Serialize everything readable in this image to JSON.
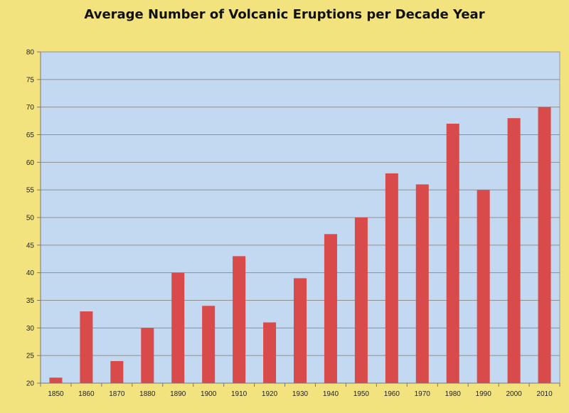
{
  "colors": {
    "background": "#f3e37f",
    "plot_area": "#c3d9f1",
    "bar": "#d94b4b",
    "gridline": "#8f8f8f"
  },
  "chart_data": {
    "type": "bar",
    "title": "Average Number of Volcanic Eruptions per Decade Year",
    "xlabel": "",
    "ylabel": "",
    "categories": [
      "1850",
      "1860",
      "1870",
      "1880",
      "1890",
      "1900",
      "1910",
      "1920",
      "1930",
      "1940",
      "1950",
      "1960",
      "1970",
      "1980",
      "1990",
      "2000",
      "2010"
    ],
    "series": [
      {
        "values": [
          21,
          33,
          24,
          30,
          40,
          34,
          43,
          31,
          39,
          47,
          50,
          58,
          56,
          67,
          55,
          68,
          70
        ]
      }
    ],
    "ylim": [
      20,
      80
    ],
    "yticks": [
      20,
      25,
      30,
      35,
      40,
      45,
      50,
      55,
      60,
      65,
      70,
      75,
      80
    ],
    "grid": true,
    "legend": "none"
  }
}
